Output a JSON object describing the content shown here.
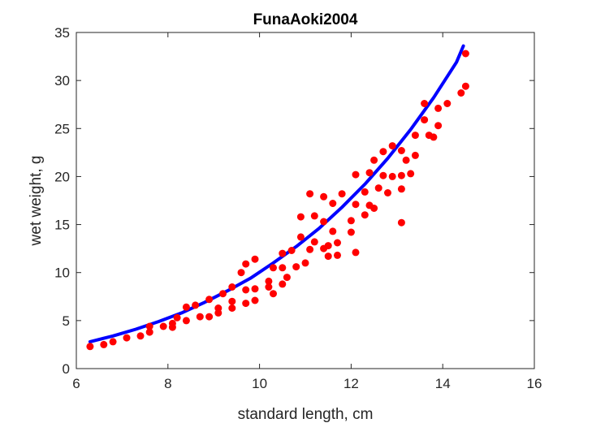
{
  "chart_data": {
    "type": "scatter",
    "title": "FunaAoki2004",
    "xlabel": "standard length, cm",
    "ylabel": "wet weight, g",
    "xlim": [
      6,
      16
    ],
    "ylim": [
      0,
      35
    ],
    "xticks": [
      "6",
      "8",
      "10",
      "12",
      "14",
      "16"
    ],
    "yticks": [
      "0",
      "5",
      "10",
      "15",
      "20",
      "25",
      "30",
      "35"
    ],
    "grid": false,
    "legend": false,
    "points": {
      "color": "#ff0000",
      "x": [
        6.3,
        6.6,
        6.8,
        7.1,
        7.4,
        7.6,
        7.6,
        7.9,
        8.1,
        8.1,
        8.2,
        8.4,
        8.4,
        8.6,
        8.7,
        8.9,
        8.9,
        9.1,
        9.1,
        9.2,
        9.4,
        9.4,
        9.4,
        9.6,
        9.7,
        9.7,
        9.7,
        9.9,
        9.9,
        9.9,
        10.2,
        10.2,
        10.3,
        10.3,
        10.5,
        10.5,
        10.5,
        10.6,
        10.7,
        10.8,
        10.9,
        10.9,
        11.0,
        11.1,
        11.1,
        11.2,
        11.2,
        11.4,
        11.4,
        11.4,
        11.5,
        11.5,
        11.6,
        11.6,
        11.7,
        11.7,
        11.8,
        12.0,
        12.0,
        12.1,
        12.1,
        12.1,
        12.3,
        12.3,
        12.4,
        12.4,
        12.5,
        12.5,
        12.6,
        12.7,
        12.7,
        12.8,
        12.9,
        12.9,
        13.1,
        13.1,
        13.1,
        13.1,
        13.2,
        13.3,
        13.4,
        13.4,
        13.6,
        13.6,
        13.7,
        13.8,
        13.9,
        13.9,
        14.1,
        14.4,
        14.5,
        14.5
      ],
      "y": [
        2.3,
        2.5,
        2.8,
        3.2,
        3.4,
        3.8,
        4.4,
        4.4,
        4.3,
        4.7,
        5.3,
        5.0,
        6.4,
        6.6,
        5.4,
        5.4,
        7.2,
        5.8,
        6.3,
        7.8,
        6.3,
        7.0,
        8.5,
        10.0,
        6.8,
        8.2,
        10.9,
        7.1,
        8.3,
        11.4,
        8.5,
        9.1,
        7.8,
        10.5,
        8.8,
        10.5,
        12.0,
        9.5,
        12.3,
        10.6,
        13.7,
        15.8,
        11.0,
        12.4,
        18.2,
        13.2,
        15.9,
        12.5,
        15.3,
        17.9,
        11.7,
        12.8,
        14.3,
        17.2,
        11.8,
        13.1,
        18.2,
        14.2,
        15.4,
        12.1,
        17.1,
        20.2,
        16.0,
        18.4,
        17.0,
        20.4,
        16.7,
        21.7,
        18.8,
        20.1,
        22.6,
        18.3,
        20.0,
        23.2,
        15.2,
        18.7,
        20.1,
        22.7,
        21.7,
        20.3,
        22.2,
        24.3,
        25.9,
        27.6,
        24.3,
        24.1,
        25.3,
        27.1,
        27.6,
        28.7,
        29.4,
        32.8
      ]
    },
    "fit_curve": {
      "color": "#0000ff",
      "x": [
        6.3,
        6.8,
        7.3,
        7.8,
        8.3,
        8.8,
        9.3,
        9.8,
        10.3,
        10.8,
        11.3,
        11.8,
        12.3,
        12.8,
        13.3,
        13.8,
        14.3,
        14.45
      ],
      "y": [
        2.8,
        3.4,
        4.1,
        4.9,
        5.8,
        6.9,
        8.1,
        9.4,
        11.0,
        12.7,
        14.6,
        16.8,
        19.2,
        21.9,
        24.9,
        28.2,
        31.9,
        33.6
      ]
    }
  }
}
